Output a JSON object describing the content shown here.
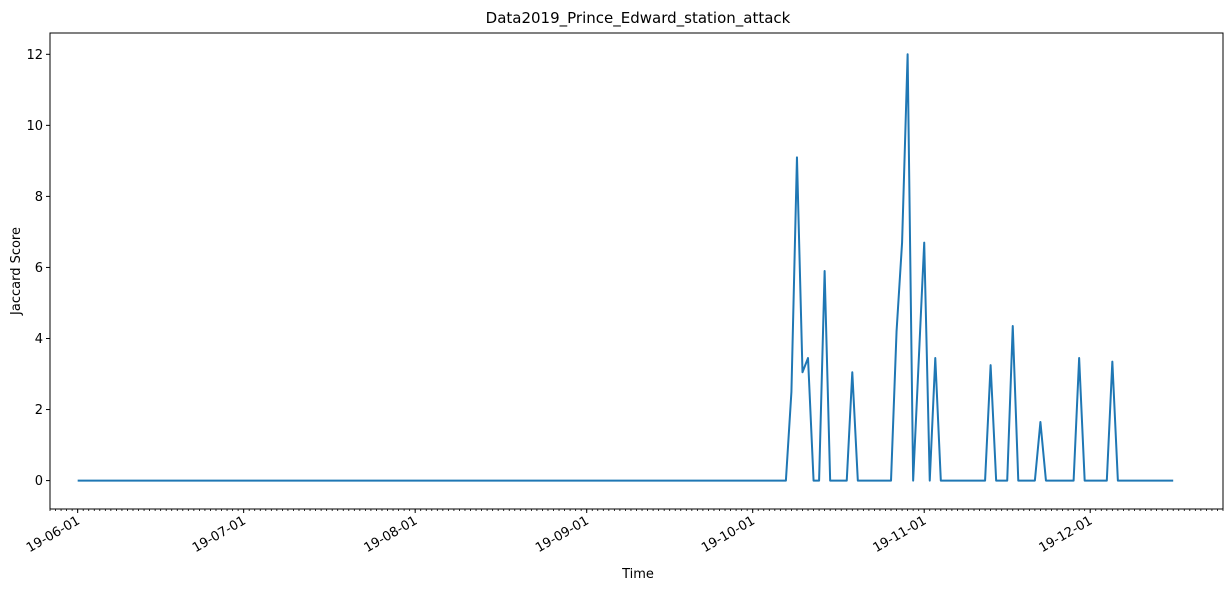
{
  "chart_data": {
    "type": "line",
    "title": "Data2019_Prince_Edward_station_attack",
    "xlabel": "Time",
    "ylabel": "Jaccard Score",
    "xlim": [
      "2019-05-27",
      "2019-12-25"
    ],
    "ylim": [
      -0.8,
      12.6
    ],
    "x_ticks": [
      "2019-06-01",
      "2019-07-01",
      "2019-08-01",
      "2019-09-01",
      "2019-10-01",
      "2019-11-01",
      "2019-12-01"
    ],
    "x_tick_labels": [
      "19-06-01",
      "19-07-01",
      "19-08-01",
      "19-09-01",
      "19-10-01",
      "19-11-01",
      "19-12-01"
    ],
    "y_ticks": [
      0,
      2,
      4,
      6,
      8,
      10,
      12
    ],
    "y_tick_labels": [
      "0",
      "2",
      "4",
      "6",
      "8",
      "10",
      "12"
    ],
    "grid": false,
    "series": [
      {
        "color": "#1f77b4",
        "points": [
          [
            "2019-06-01",
            0
          ],
          [
            "2019-10-07",
            0
          ],
          [
            "2019-10-08",
            2.5
          ],
          [
            "2019-10-09",
            9.1
          ],
          [
            "2019-10-10",
            3.05
          ],
          [
            "2019-10-11",
            3.45
          ],
          [
            "2019-10-12",
            0
          ],
          [
            "2019-10-13",
            0
          ],
          [
            "2019-10-14",
            5.9
          ],
          [
            "2019-10-15",
            0
          ],
          [
            "2019-10-18",
            0
          ],
          [
            "2019-10-19",
            3.05
          ],
          [
            "2019-10-20",
            0
          ],
          [
            "2019-10-26",
            0
          ],
          [
            "2019-10-27",
            4.2
          ],
          [
            "2019-10-28",
            6.7
          ],
          [
            "2019-10-29",
            12.0
          ],
          [
            "2019-10-30",
            0
          ],
          [
            "2019-11-01",
            6.7
          ],
          [
            "2019-11-02",
            0
          ],
          [
            "2019-11-03",
            3.45
          ],
          [
            "2019-11-04",
            0
          ],
          [
            "2019-11-12",
            0
          ],
          [
            "2019-11-13",
            3.25
          ],
          [
            "2019-11-14",
            0
          ],
          [
            "2019-11-16",
            0
          ],
          [
            "2019-11-17",
            4.35
          ],
          [
            "2019-11-18",
            0
          ],
          [
            "2019-11-21",
            0
          ],
          [
            "2019-11-22",
            1.65
          ],
          [
            "2019-11-23",
            0
          ],
          [
            "2019-11-28",
            0
          ],
          [
            "2019-11-29",
            3.45
          ],
          [
            "2019-11-30",
            0
          ],
          [
            "2019-12-04",
            0
          ],
          [
            "2019-12-05",
            3.35
          ],
          [
            "2019-12-06",
            0
          ],
          [
            "2019-12-16",
            0
          ]
        ]
      }
    ]
  }
}
